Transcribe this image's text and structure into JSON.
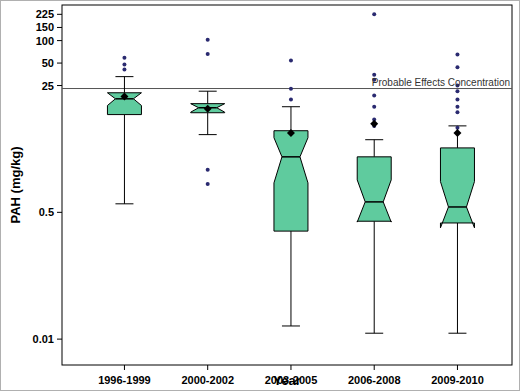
{
  "chart_data": {
    "type": "box",
    "x_label": "Year",
    "y_label": "PAH (mg/kg)",
    "categories": [
      "1996-1999",
      "2000-2002",
      "2003-2005",
      "2006-2008",
      "2009-2010"
    ],
    "log": "y",
    "ylim": [
      0.0045,
      300
    ],
    "yticks": [
      0.01,
      0.5,
      25,
      50,
      100,
      150,
      225
    ],
    "color": "#5fcb9e",
    "grid": false,
    "boxes": [
      {
        "whisker_low": 0.65,
        "q1": 10.2,
        "median": 16.6,
        "q3": 20,
        "whisker_high": 32.9,
        "notch_low": 13.5,
        "notch_high": 20,
        "mean": 17.8,
        "outliers": [
          59,
          48,
          41
        ]
      },
      {
        "whisker_low": 5.5,
        "q1": 10.8,
        "median": 12.6,
        "q3": 14.3,
        "whisker_high": 21,
        "notch_low": 11,
        "notch_high": 14.3,
        "mean": 12.2,
        "outliers": [
          103,
          66,
          1.86,
          1.2
        ]
      },
      {
        "whisker_low": 0.015,
        "q1": 0.28,
        "median": 2.77,
        "q3": 6.2,
        "whisker_high": 13,
        "notch_low": 1.24,
        "notch_high": 5.0,
        "mean": 5.8,
        "outliers": [
          54,
          22.6,
          16.2
        ]
      },
      {
        "whisker_low": 0.012,
        "q1": 0.38,
        "median": 0.69,
        "q3": 2.77,
        "whisker_high": 4.7,
        "notch_low": 0.37,
        "notch_high": 1.36,
        "mean": 7.7,
        "outliers": [
          225,
          35,
          30,
          18.4,
          13,
          8.8,
          7.2
        ]
      },
      {
        "whisker_low": 0.012,
        "q1": 0.36,
        "median": 0.59,
        "q3": 3.65,
        "whisker_high": 7.2,
        "notch_low": 0.31,
        "notch_high": 1.29,
        "mean": 5.8,
        "outliers": [
          65,
          44,
          25,
          21,
          16.2,
          13,
          11,
          6.8
        ]
      }
    ],
    "reference_lines": [
      {
        "value": 22.8,
        "label": "Probable Effects Concentration"
      }
    ]
  }
}
